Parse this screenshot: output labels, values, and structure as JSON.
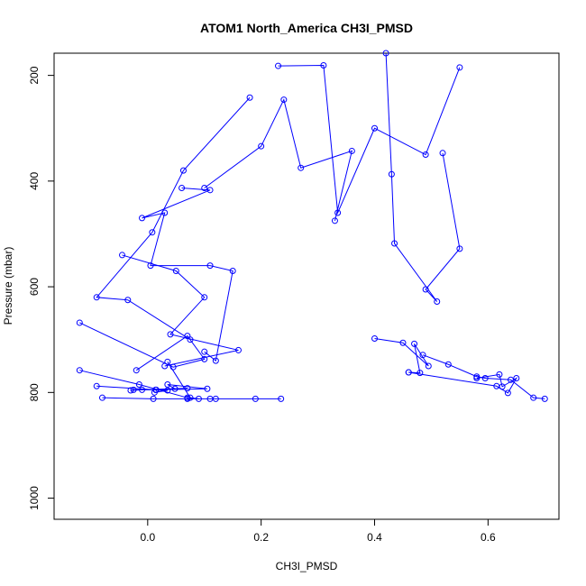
{
  "chart_data": {
    "type": "line",
    "title": "ATOM1 North_America CH3I_PMSD",
    "xlabel": "CH3I_PMSD",
    "ylabel": "Pressure (mbar)",
    "xlim": [
      -0.165,
      0.725
    ],
    "ylim": [
      1040,
      158
    ],
    "y_reversed": true,
    "x_ticks": [
      0.0,
      0.2,
      0.4,
      0.6
    ],
    "x_tick_labels": [
      "0.0",
      "0.2",
      "0.4",
      "0.6"
    ],
    "y_ticks": [
      200,
      400,
      600,
      800,
      1000
    ],
    "y_tick_labels": [
      "200",
      "400",
      "600",
      "800",
      "1000"
    ],
    "grid": false,
    "series_color": "#0000ff",
    "series": [
      {
        "x": [
          0.012,
          0.035,
          0.014,
          0.105,
          0.035,
          0.048
        ],
        "y": [
          800,
          796,
          795,
          793,
          785,
          793
        ]
      },
      {
        "x": [
          0.07,
          -0.01,
          -0.03,
          -0.025,
          0.015,
          -0.09
        ],
        "y": [
          792,
          795,
          796,
          795,
          795,
          788
        ]
      },
      {
        "x": [
          0.18,
          0.063,
          0.008,
          -0.09,
          -0.035,
          0.075
        ],
        "y": [
          242,
          380,
          497,
          620,
          625,
          700
        ]
      },
      {
        "x": [
          0.33,
          0.36,
          0.27,
          0.24,
          0.2,
          0.1
        ],
        "y": [
          475,
          343,
          375,
          246,
          334,
          413
        ]
      },
      {
        "x": [
          0.42,
          0.43,
          0.435,
          0.51,
          0.49,
          0.55,
          0.52
        ],
        "y": [
          158,
          387,
          518,
          628,
          605,
          528,
          347
        ]
      },
      {
        "x": [
          0.06,
          0.11,
          -0.01,
          0.03,
          0.005,
          0.11,
          0.15,
          0.12,
          0.1
        ],
        "y": [
          413,
          417,
          470,
          460,
          560,
          560,
          570,
          740,
          723
        ]
      },
      {
        "x": [
          -0.045,
          0.05,
          0.1,
          0.04,
          0.16,
          0.03
        ],
        "y": [
          540,
          570,
          620,
          690,
          720,
          750
        ]
      },
      {
        "x": [
          -0.12,
          0.045,
          0.1,
          0.07,
          -0.02
        ],
        "y": [
          668,
          752,
          737,
          693,
          758
        ]
      },
      {
        "x": [
          0.485,
          0.53,
          0.58,
          0.595,
          0.64,
          0.68,
          0.7
        ],
        "y": [
          729,
          747,
          770,
          773,
          776,
          810,
          812
        ]
      },
      {
        "x": [
          0.58,
          0.62,
          0.625,
          0.65,
          0.635,
          0.615,
          0.46
        ],
        "y": [
          773,
          766,
          789,
          773,
          801,
          788,
          762
        ]
      },
      {
        "x": [
          0.46,
          0.48,
          0.47,
          0.495,
          0.45,
          0.4
        ],
        "y": [
          762,
          763,
          708,
          750,
          706,
          698
        ]
      },
      {
        "x": [
          0.035,
          0.075,
          0.09,
          0.07,
          -0.015,
          -0.12
        ],
        "y": [
          742,
          810,
          812,
          810,
          785,
          758
        ]
      },
      {
        "x": [
          -0.08,
          0.01,
          0.07,
          0.11,
          0.12,
          0.19,
          0.235
        ],
        "y": [
          810,
          812,
          812,
          812,
          812,
          812,
          812
        ]
      },
      {
        "x": [
          0.23,
          0.31,
          0.335,
          0.4,
          0.49,
          0.55
        ],
        "y": [
          182,
          181,
          460,
          300,
          350,
          185
        ]
      }
    ]
  }
}
